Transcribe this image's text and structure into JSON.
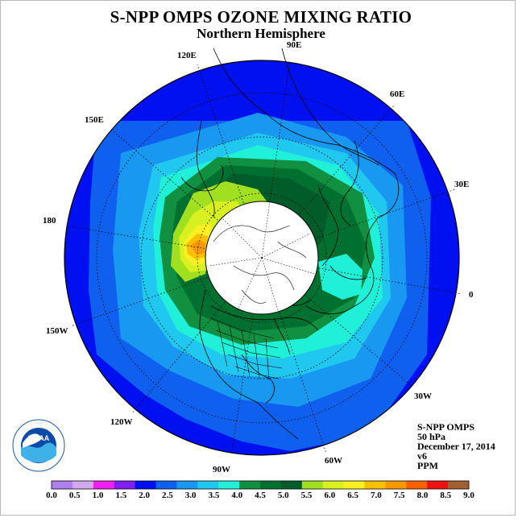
{
  "title": "S-NPP OMPS OZONE MIXING RATIO",
  "subtitle": "Northern Hemisphere",
  "longitude_labels": [
    {
      "id": "lon-90e",
      "text": "90E"
    },
    {
      "id": "lon-60e",
      "text": "60E"
    },
    {
      "id": "lon-30e",
      "text": "30E"
    },
    {
      "id": "lon-0",
      "text": "0"
    },
    {
      "id": "lon-30w",
      "text": "30W"
    },
    {
      "id": "lon-60w",
      "text": "60W"
    },
    {
      "id": "lon-90w",
      "text": "90W"
    },
    {
      "id": "lon-120w",
      "text": "120W"
    },
    {
      "id": "lon-150w",
      "text": "150W"
    },
    {
      "id": "lon-180",
      "text": "180"
    },
    {
      "id": "lon-150e",
      "text": "150E"
    },
    {
      "id": "lon-120e",
      "text": "120E"
    }
  ],
  "info": {
    "instrument": "S-NPP OMPS",
    "pressure_level": "50 hPa",
    "date": "December 17, 2014",
    "version": "v6",
    "units": "PPM"
  },
  "logo_text": "NOAA",
  "logo_ring_text": "NATIONAL OCEANIC AND ATMOSPHERIC ADMINISTRATION · U.S. DEPARTMENT OF COMMERCE",
  "colorbar": {
    "ticks": [
      "0.0",
      "0.5",
      "1.0",
      "1.5",
      "2.0",
      "2.5",
      "3.0",
      "3.5",
      "4.0",
      "4.5",
      "5.0",
      "5.5",
      "6.0",
      "6.5",
      "7.0",
      "7.5",
      "8.0",
      "8.5",
      "9.0"
    ],
    "colors": [
      "#b080f0",
      "#d4a8f0",
      "#f020f0",
      "#8020f0",
      "#0010f0",
      "#1060f0",
      "#1898f0",
      "#20c8f0",
      "#20f0d8",
      "#109040",
      "#007030",
      "#005c28",
      "#a0e020",
      "#d8f020",
      "#f8f020",
      "#f8c000",
      "#f89800",
      "#f86000",
      "#f01010",
      "#a06030"
    ]
  },
  "map_colors": {
    "c2_0": "#0010f0",
    "c2_5": "#1060f0",
    "c3_0": "#1898f0",
    "c3_5": "#20c8f0",
    "c4_0": "#20f0d8",
    "c4_5": "#109040",
    "c5_0": "#007030",
    "c5_5": "#005c28",
    "c6_0": "#a0e020",
    "c6_5": "#d8f020",
    "c7_0": "#f8f020",
    "c7_5": "#f8c000",
    "c8_0": "#f89800"
  }
}
